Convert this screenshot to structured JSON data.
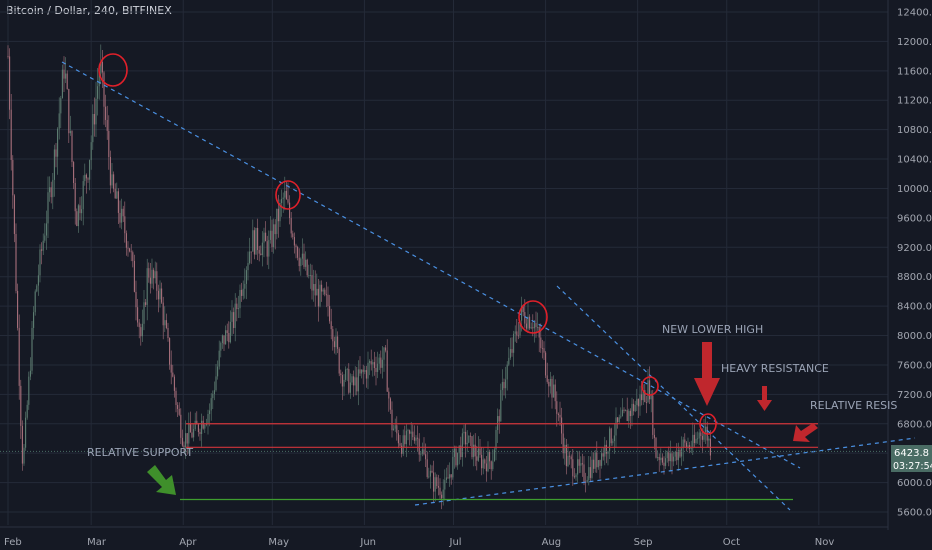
{
  "header": {
    "title": "Bitcoin / Dollar, 240, BITFINEX"
  },
  "price_badges": {
    "price": "6423.8",
    "countdown": "03:27:54"
  },
  "colors": {
    "background": "#151924",
    "grid": "#242a38",
    "up": "#5f7f73",
    "down": "#a9707c",
    "trendline": "#4a90e2",
    "resistance": "#d0343a",
    "support": "#3f9e2f",
    "highlight": "#e0202a",
    "label": "#9aa3b5"
  },
  "chart_data": {
    "type": "candlestick",
    "title": "Bitcoin / Dollar, 240, BITFINEX",
    "ylim": [
      5450,
      12500
    ],
    "y_ticks": [
      "12400.0",
      "12000.0",
      "11600.0",
      "11200.0",
      "10800.0",
      "10400.0",
      "10000.0",
      "9600.0",
      "9200.0",
      "8800.0",
      "8400.0",
      "8000.0",
      "7600.0",
      "7200.0",
      "6800.0",
      "6400.0",
      "6000.0",
      "5600.0"
    ],
    "x_ticks": [
      "Feb",
      "Mar",
      "Apr",
      "May",
      "Jun",
      "Jul",
      "Aug",
      "Sep",
      "Oct",
      "Nov"
    ],
    "price_path": [
      [
        "2018-02-01",
        11800
      ],
      [
        "2018-02-05",
        7200
      ],
      [
        "2018-02-06",
        6200
      ],
      [
        "2018-02-10",
        8500
      ],
      [
        "2018-02-16",
        10200
      ],
      [
        "2018-02-20",
        11700
      ],
      [
        "2018-02-24",
        9600
      ],
      [
        "2018-02-28",
        10300
      ],
      [
        "2018-03-04",
        11700
      ],
      [
        "2018-03-08",
        10000
      ],
      [
        "2018-03-14",
        9200
      ],
      [
        "2018-03-18",
        7900
      ],
      [
        "2018-03-20",
        8900
      ],
      [
        "2018-03-24",
        8600
      ],
      [
        "2018-03-30",
        7000
      ],
      [
        "2018-04-01",
        6600
      ],
      [
        "2018-04-05",
        6700
      ],
      [
        "2018-04-10",
        7000
      ],
      [
        "2018-04-14",
        7900
      ],
      [
        "2018-04-18",
        8200
      ],
      [
        "2018-04-24",
        9300
      ],
      [
        "2018-04-30",
        9200
      ],
      [
        "2018-05-05",
        9900
      ],
      [
        "2018-05-10",
        9100
      ],
      [
        "2018-05-15",
        8600
      ],
      [
        "2018-05-20",
        8400
      ],
      [
        "2018-05-24",
        7500
      ],
      [
        "2018-05-28",
        7300
      ],
      [
        "2018-06-03",
        7600
      ],
      [
        "2018-06-08",
        7700
      ],
      [
        "2018-06-10",
        6800
      ],
      [
        "2018-06-14",
        6500
      ],
      [
        "2018-06-18",
        6700
      ],
      [
        "2018-06-24",
        6000
      ],
      [
        "2018-06-28",
        5900
      ],
      [
        "2018-07-01",
        6300
      ],
      [
        "2018-07-05",
        6600
      ],
      [
        "2018-07-10",
        6300
      ],
      [
        "2018-07-14",
        6300
      ],
      [
        "2018-07-18",
        7400
      ],
      [
        "2018-07-24",
        8300
      ],
      [
        "2018-07-28",
        8200
      ],
      [
        "2018-08-01",
        7600
      ],
      [
        "2018-08-05",
        7000
      ],
      [
        "2018-08-08",
        6300
      ],
      [
        "2018-08-14",
        6100
      ],
      [
        "2018-08-20",
        6400
      ],
      [
        "2018-08-24",
        6700
      ],
      [
        "2018-08-30",
        7000
      ],
      [
        "2018-09-05",
        7300
      ],
      [
        "2018-09-07",
        6400
      ],
      [
        "2018-09-12",
        6300
      ],
      [
        "2018-09-16",
        6500
      ],
      [
        "2018-09-20",
        6500
      ],
      [
        "2018-09-22",
        6700
      ],
      [
        "2018-09-24",
        6700
      ],
      [
        "2018-09-26",
        6423.8
      ]
    ],
    "annotations": [
      {
        "text": "NEW LOWER HIGH",
        "type": "label"
      },
      {
        "text": "HEAVY RESISTANCE",
        "type": "label"
      },
      {
        "text": "RELATIVE RESIS",
        "type": "label"
      },
      {
        "text": "RELATIVE SUPPORT",
        "type": "label"
      }
    ],
    "horizontal_levels": {
      "resistance_upper": 6800,
      "resistance_lower": 6480,
      "support": 5770
    },
    "last_price": 6423.8
  }
}
